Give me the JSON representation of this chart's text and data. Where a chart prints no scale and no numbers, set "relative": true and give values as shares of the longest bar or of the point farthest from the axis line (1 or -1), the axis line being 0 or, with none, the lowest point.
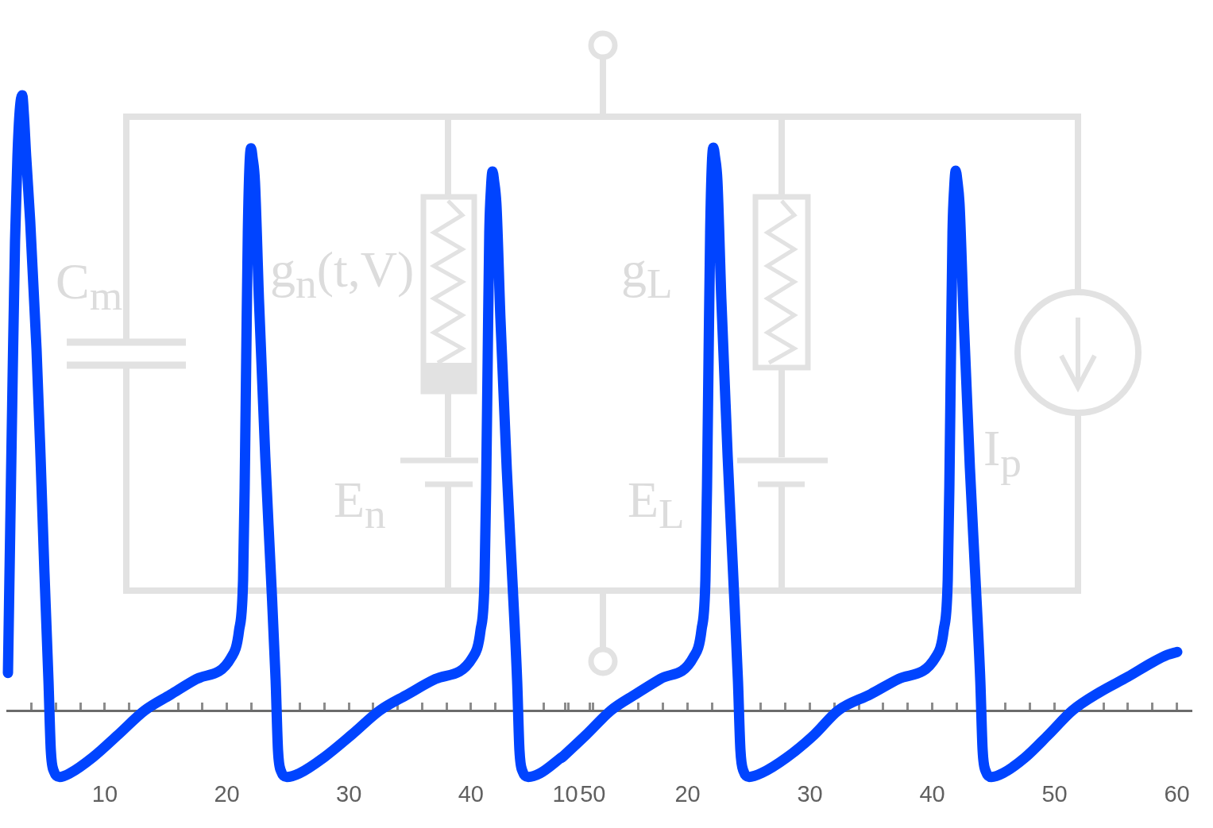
{
  "chart_data": [
    {
      "type": "line",
      "relative": true,
      "x": [
        2.06,
        2.25,
        2.45,
        2.64,
        2.84,
        3.03,
        3.23,
        3.36,
        3.55,
        3.88,
        4.4,
        4.73,
        5.05,
        5.38,
        5.57,
        5.83,
        6.29,
        7.14,
        9.02,
        11.11,
        13.26,
        15.4,
        17.49,
        20.35,
        21.0,
        21.33,
        21.46,
        21.59,
        21.72,
        21.85,
        21.98,
        22.11,
        22.3,
        22.63,
        23.15,
        23.61,
        24.0,
        24.19,
        24.45,
        24.91,
        25.95,
        27.97,
        30.25,
        32.53,
        34.8,
        37.08,
        40.14,
        40.79,
        41.12,
        41.25,
        41.38,
        41.51,
        41.64,
        41.77,
        41.9,
        42.1,
        42.42,
        42.94,
        43.4,
        43.79,
        43.98,
        44.24,
        44.7,
        45.68,
        47.44
      ],
      "series": [
        {
          "color": "#0044ff",
          "values": [
            0.061,
            0.3,
            0.55,
            0.763,
            0.901,
            0.976,
            1.0,
            0.97,
            0.901,
            0.796,
            0.588,
            0.412,
            0.224,
            0.049,
            -0.064,
            -0.099,
            -0.108,
            -0.102,
            -0.076,
            -0.039,
            0,
            0.026,
            0.051,
            0.086,
            0.13,
            0.212,
            0.362,
            0.575,
            0.776,
            0.882,
            0.914,
            0.898,
            0.86,
            0.668,
            0.412,
            0.221,
            0.049,
            -0.064,
            -0.099,
            -0.108,
            -0.102,
            -0.076,
            -0.039,
            0,
            0.026,
            0.051,
            0.086,
            0.13,
            0.212,
            0.362,
            0.575,
            0.776,
            0.845,
            0.876,
            0.861,
            0.82,
            0.638,
            0.393,
            0.212,
            0.049,
            -0.064,
            -0.099,
            -0.108,
            -0.102,
            -0.076
          ]
        }
      ],
      "xlim": [
        2,
        51.2
      ],
      "xticks": [
        {
          "value": 4,
          "label": null
        },
        {
          "value": 6,
          "label": null
        },
        {
          "value": 8,
          "label": null
        },
        10,
        {
          "value": 12,
          "label": null
        },
        {
          "value": 14,
          "label": null
        },
        {
          "value": 16,
          "label": null
        },
        {
          "value": 18,
          "label": null
        },
        20,
        {
          "value": 22,
          "label": null
        },
        {
          "value": 24,
          "label": null
        },
        {
          "value": 26,
          "label": null
        },
        {
          "value": 28,
          "label": null
        },
        30,
        {
          "value": 32,
          "label": null
        },
        {
          "value": 34,
          "label": null
        },
        {
          "value": 36,
          "label": null
        },
        {
          "value": 38,
          "label": null
        },
        40,
        {
          "value": 42,
          "label": null
        },
        {
          "value": 44,
          "label": null
        },
        {
          "value": 46,
          "label": null
        },
        {
          "value": 48,
          "label": null
        },
        50
      ],
      "line_style": "solid",
      "annotations": [
        "C$_{m}$",
        "g$_{n}$(t,V)",
        "E$_{n}$"
      ]
    },
    {
      "type": "line",
      "relative": true,
      "x": [
        9.71,
        11.72,
        13.73,
        15.75,
        17.76,
        20.49,
        21.14,
        21.46,
        21.59,
        21.72,
        21.85,
        21.98,
        22.11,
        22.24,
        22.44,
        22.76,
        23.28,
        23.73,
        24.12,
        24.32,
        24.58,
        25.03,
        26.07,
        28.08,
        30.36,
        32.31,
        34.97,
        37.24,
        40.29,
        40.94,
        41.27,
        41.4,
        41.53,
        41.66,
        41.79,
        41.92,
        42.05,
        42.24,
        42.57,
        43.08,
        43.54,
        43.93,
        44.12,
        44.38,
        44.84,
        45.81,
        47.57,
        49.51,
        51.46,
        53.73,
        56.01,
        57.96,
        59.25,
        60.03
      ],
      "series": [
        {
          "color": "#0044ff",
          "values": [
            -0.084,
            -0.043,
            0,
            0.029,
            0.056,
            0.095,
            0.143,
            0.232,
            0.396,
            0.63,
            0.849,
            0.966,
            1.0,
            0.984,
            0.941,
            0.731,
            0.451,
            0.241,
            0.053,
            -0.07,
            -0.108,
            -0.118,
            -0.111,
            -0.084,
            -0.043,
            0,
            0.029,
            0.056,
            0.095,
            0.143,
            0.232,
            0.396,
            0.63,
            0.849,
            0.925,
            0.959,
            0.942,
            0.897,
            0.698,
            0.431,
            0.232,
            0.053,
            -0.07,
            -0.108,
            -0.118,
            -0.111,
            -0.084,
            -0.043,
            0,
            0.033,
            0.06,
            0.085,
            0.099,
            0.104
          ]
        }
      ],
      "xlim": [
        8.9,
        61.2
      ],
      "xticks": [
        10,
        {
          "value": 12,
          "label": null
        },
        {
          "value": 14,
          "label": null
        },
        {
          "value": 16,
          "label": null
        },
        {
          "value": 18,
          "label": null
        },
        20,
        {
          "value": 22,
          "label": null
        },
        {
          "value": 24,
          "label": null
        },
        {
          "value": 26,
          "label": null
        },
        {
          "value": 28,
          "label": null
        },
        30,
        {
          "value": 32,
          "label": null
        },
        {
          "value": 34,
          "label": null
        },
        {
          "value": 36,
          "label": null
        },
        {
          "value": 38,
          "label": null
        },
        40,
        {
          "value": 42,
          "label": null
        },
        {
          "value": 44,
          "label": null
        },
        {
          "value": 46,
          "label": null
        },
        {
          "value": 48,
          "label": null
        },
        50,
        {
          "value": 52,
          "label": null
        },
        {
          "value": 54,
          "label": null
        },
        {
          "value": 56,
          "label": null
        },
        {
          "value": 58,
          "label": null
        },
        60
      ],
      "line_style": "solid",
      "annotations": [
        "g$_{L}$",
        "E$_{L}$",
        "I$_{p}$"
      ]
    }
  ]
}
